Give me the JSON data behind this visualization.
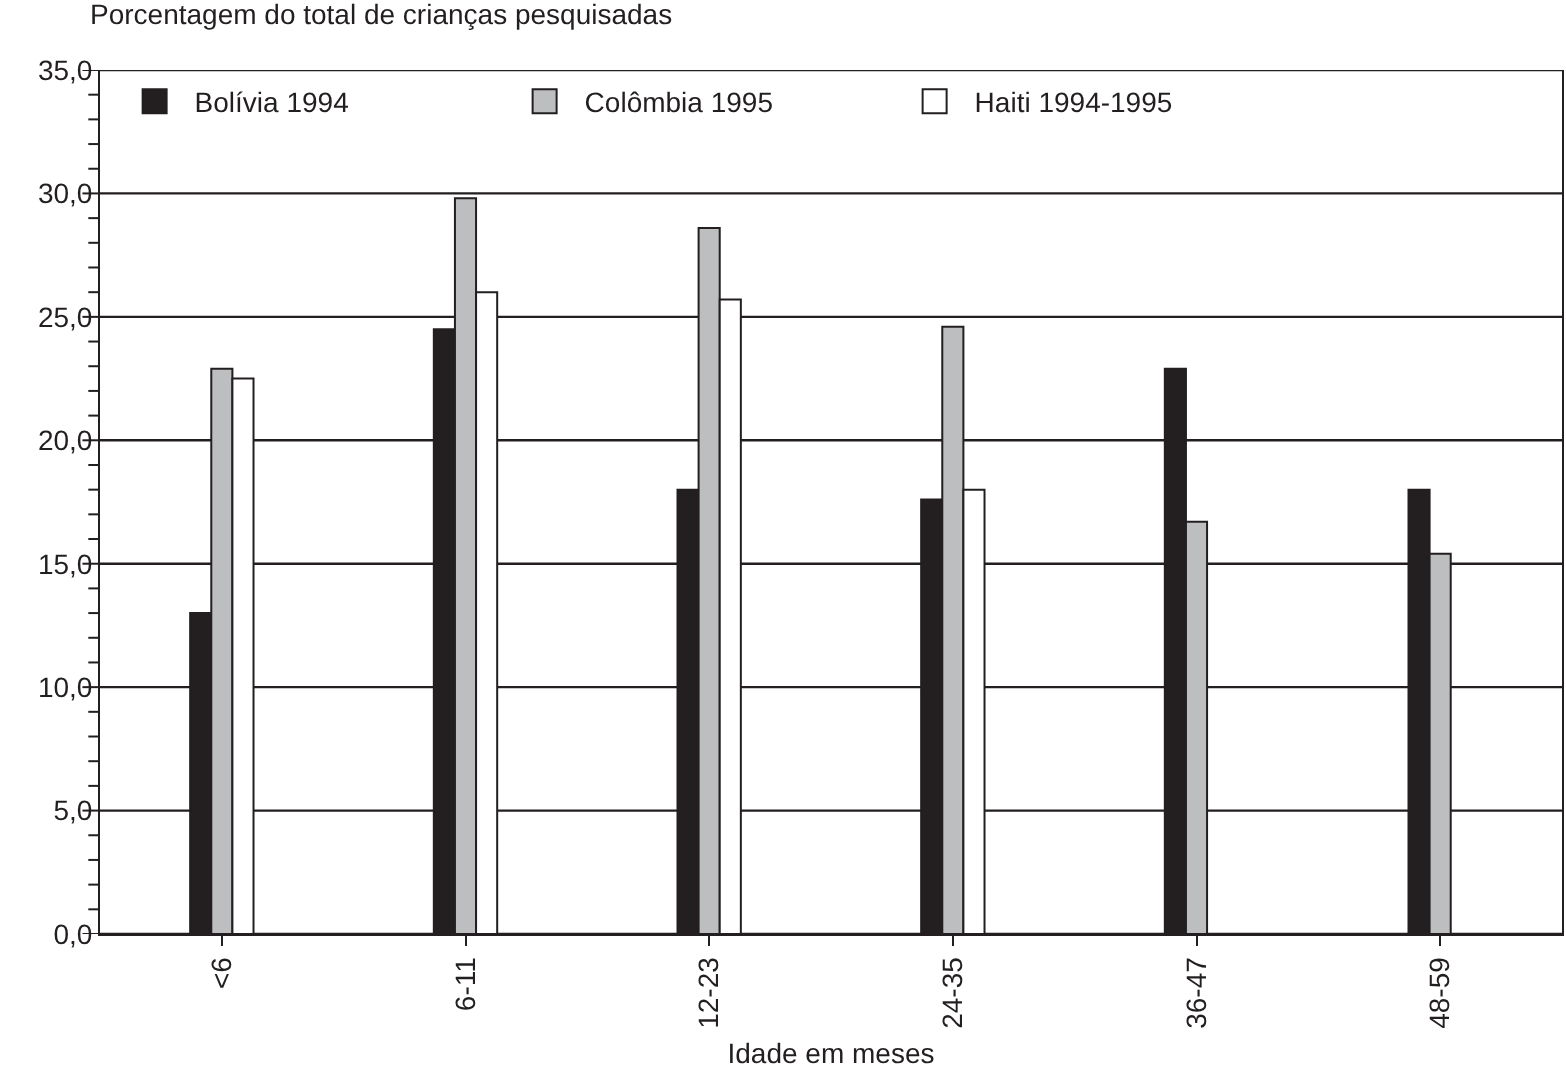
{
  "chart_data": {
    "type": "bar",
    "ylabel": "Porcentagem do total de crianças pesquisadas",
    "xlabel": "Idade em meses",
    "categories": [
      "<6",
      "6-11",
      "12-23",
      "24-35",
      "36-47",
      "48-59"
    ],
    "series": [
      {
        "name": "Bolívia 1994",
        "color": "#231f20",
        "values": [
          13.0,
          24.5,
          18.0,
          17.6,
          22.9,
          18.0
        ]
      },
      {
        "name": "Colômbia 1995",
        "color": "#bcbec0",
        "values": [
          22.9,
          29.8,
          28.6,
          24.6,
          16.7,
          15.4
        ]
      },
      {
        "name": "Haiti 1994-1995",
        "color": "#ffffff",
        "values": [
          22.5,
          26.0,
          25.7,
          18.0,
          null,
          null
        ]
      }
    ],
    "ylim": [
      0,
      35
    ],
    "yticks": [
      {
        "value": 0,
        "label": "0,0"
      },
      {
        "value": 1,
        "label": null
      },
      {
        "value": 2,
        "label": null
      },
      {
        "value": 3,
        "label": null
      },
      {
        "value": 4,
        "label": null
      },
      {
        "value": 5,
        "label": "5,0"
      },
      {
        "value": 6,
        "label": null
      },
      {
        "value": 7,
        "label": null
      },
      {
        "value": 8,
        "label": null
      },
      {
        "value": 9,
        "label": null
      },
      {
        "value": 10,
        "label": "10,0"
      },
      {
        "value": 11,
        "label": null
      },
      {
        "value": 12,
        "label": null
      },
      {
        "value": 13,
        "label": null
      },
      {
        "value": 14,
        "label": null
      },
      {
        "value": 15,
        "label": "15,0"
      },
      {
        "value": 16,
        "label": null
      },
      {
        "value": 17,
        "label": null
      },
      {
        "value": 18,
        "label": null
      },
      {
        "value": 19,
        "label": null
      },
      {
        "value": 20,
        "label": "20,0"
      },
      {
        "value": 21,
        "label": null
      },
      {
        "value": 22,
        "label": null
      },
      {
        "value": 23,
        "label": null
      },
      {
        "value": 24,
        "label": null
      },
      {
        "value": 25,
        "label": "25,0"
      },
      {
        "value": 26,
        "label": null
      },
      {
        "value": 27,
        "label": null
      },
      {
        "value": 28,
        "label": null
      },
      {
        "value": 29,
        "label": null
      },
      {
        "value": 30,
        "label": "30,0"
      },
      {
        "value": 31,
        "label": null
      },
      {
        "value": 32,
        "label": null
      },
      {
        "value": 33,
        "label": null
      },
      {
        "value": 34,
        "label": null
      },
      {
        "value": 35,
        "label": "35,0"
      }
    ],
    "grid": "y",
    "legend": "top left"
  }
}
